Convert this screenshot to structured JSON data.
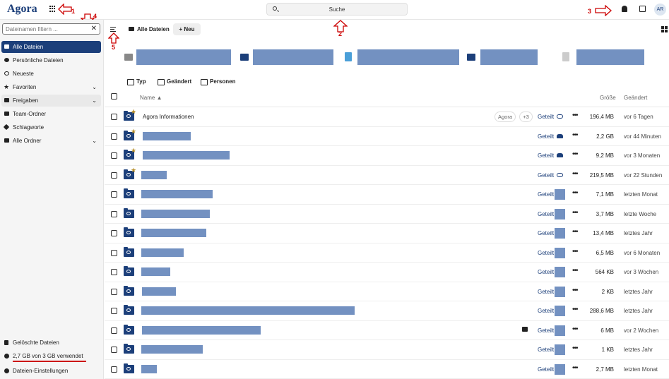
{
  "header": {
    "logo": "Agora",
    "search_placeholder": "Suche",
    "avatar_initials": "AR"
  },
  "annotations": [
    "1",
    "2",
    "3",
    "4",
    "5"
  ],
  "sidebar": {
    "filter_placeholder": "Dateinamen filtern ...",
    "items": [
      {
        "label": "Alle Dateien",
        "active": true
      },
      {
        "label": "Persönliche Dateien"
      },
      {
        "label": "Neueste"
      },
      {
        "label": "Favoriten",
        "expandable": true
      },
      {
        "label": "Freigaben",
        "expandable": true
      },
      {
        "label": "Team-Ordner"
      },
      {
        "label": "Schlagworte"
      },
      {
        "label": "Alle Ordner",
        "expandable": true
      }
    ],
    "footer": {
      "deleted": "Gelöschte Dateien",
      "quota": "2,7 GB von 3 GB verwendet",
      "quota_fraction": 0.9,
      "settings": "Dateien-Einstellungen"
    }
  },
  "main": {
    "breadcrumb": "Alle Dateien",
    "new_button": "+ Neu",
    "filters": [
      "Typ",
      "Geändert",
      "Personen"
    ],
    "columns": {
      "name": "Name ▲",
      "size": "Größe",
      "modified": "Geändert"
    },
    "rows": [
      {
        "name": "Agora Informationen",
        "tags": [
          "Agora",
          "+3"
        ],
        "share": "Geteilt",
        "share_icon": "link-icon",
        "size": "196,4 MB",
        "modified": "vor 6 Tagen",
        "favorite": true
      },
      {
        "name": "",
        "share": "Geteilt",
        "share_icon": "people-icon",
        "size": "2,2 GB",
        "modified": "vor 44 Minuten",
        "favorite": true
      },
      {
        "name": "",
        "share": "Geteilt",
        "share_icon": "people-icon",
        "size": "9,2 MB",
        "modified": "vor 3 Monaten",
        "favorite": true
      },
      {
        "name": "",
        "share": "Geteilt",
        "share_icon": "link-icon",
        "size": "219,5 MB",
        "modified": "vor 22 Stunden",
        "favorite": true
      },
      {
        "name": "",
        "share": "Geteilt",
        "size": "7,1 MB",
        "modified": "letzten Monat"
      },
      {
        "name": "",
        "share": "Geteilt",
        "size": "3,7 MB",
        "modified": "letzte Woche"
      },
      {
        "name": "",
        "share": "Geteilt",
        "size": "13,4 MB",
        "modified": "letztes Jahr"
      },
      {
        "name": "",
        "share": "Geteilt",
        "size": "6,5 MB",
        "modified": "vor 6 Monaten"
      },
      {
        "name": "",
        "share": "Geteilt",
        "size": "564 KB",
        "modified": "vor 3 Wochen"
      },
      {
        "name": "",
        "share": "Geteilt",
        "size": "2 KB",
        "modified": "letztes Jahr"
      },
      {
        "name": "",
        "share": "Geteilt",
        "size": "288,6 MB",
        "modified": "letztes Jahr"
      },
      {
        "name": "",
        "share": "Geteilt",
        "size": "6 MB",
        "modified": "vor 2 Wochen",
        "comment": true
      },
      {
        "name": "",
        "share": "Geteilt",
        "size": "1 KB",
        "modified": "letztes Jahr"
      },
      {
        "name": "",
        "share": "Geteilt",
        "size": "2,7 MB",
        "modified": "letzten Monat"
      }
    ]
  }
}
